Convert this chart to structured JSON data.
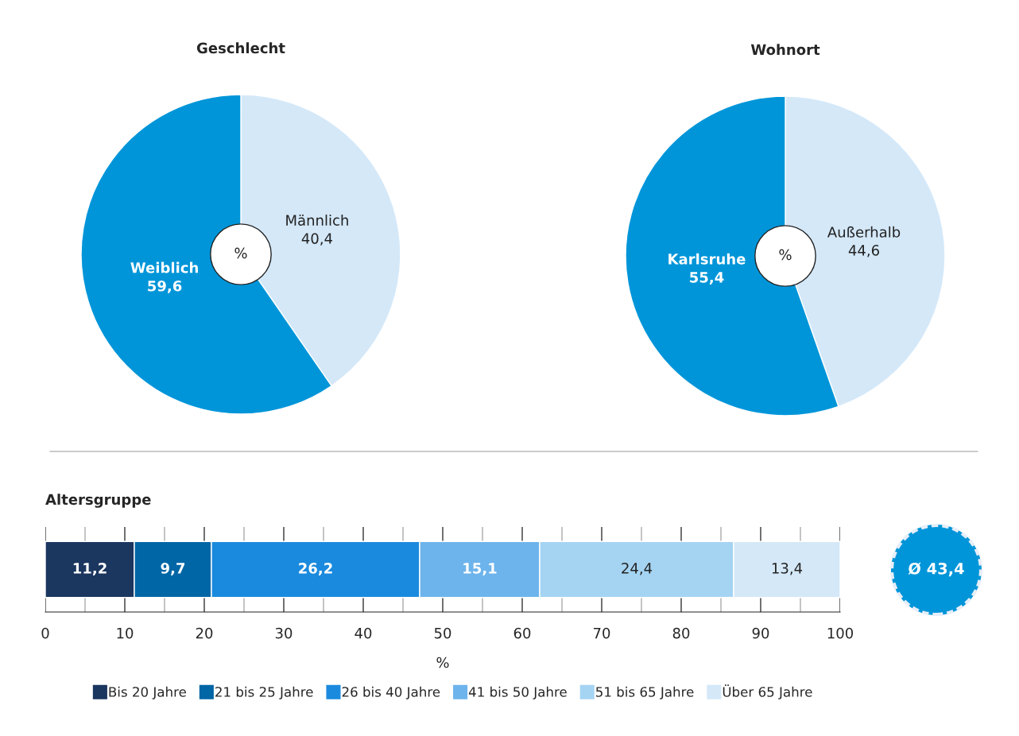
{
  "chart_data": [
    {
      "type": "pie",
      "title": "Geschlecht",
      "categories": [
        "Männlich",
        "Weiblich"
      ],
      "values": [
        40.4,
        59.6
      ],
      "value_labels": [
        "40,4",
        "59,6"
      ],
      "colors": [
        "#d4e8f8",
        "#0095d9"
      ],
      "annotations": [
        "%"
      ]
    },
    {
      "type": "pie",
      "title": "Wohnort",
      "categories": [
        "Außerhalb",
        "Karlsruhe"
      ],
      "values": [
        44.6,
        55.4
      ],
      "value_labels": [
        "44,6",
        "55,4"
      ],
      "colors": [
        "#d4e8f8",
        "#0095d9"
      ],
      "annotations": [
        "%"
      ]
    },
    {
      "type": "bar",
      "title": "Altersgruppe",
      "orientation": "horizontal",
      "stacked": true,
      "categories": [
        null
      ],
      "xlabel": "%",
      "xlim": [
        0,
        100
      ],
      "xticks": [
        0,
        {
          "value": 5,
          "label": null
        },
        10,
        {
          "value": 15,
          "label": null
        },
        20,
        {
          "value": 25,
          "label": null
        },
        30,
        {
          "value": 35,
          "label": null
        },
        40,
        {
          "value": 45,
          "label": null
        },
        50,
        {
          "value": 55,
          "label": null
        },
        60,
        {
          "value": 65,
          "label": null
        },
        70,
        {
          "value": 75,
          "label": null
        },
        80,
        {
          "value": 85,
          "label": null
        },
        90,
        {
          "value": 95,
          "label": null
        },
        100
      ],
      "grid": "x",
      "legend": "bottom",
      "series": [
        {
          "name": "Bis 20 Jahre",
          "color": "#1b365f",
          "values": [
            11.2
          ],
          "value_labels": [
            "11,2"
          ]
        },
        {
          "name": "21 bis 25 Jahre",
          "color": "#0066a6",
          "values": [
            9.7
          ],
          "value_labels": [
            "9,7"
          ]
        },
        {
          "name": "26 bis 40 Jahre",
          "color": "#1a8ade",
          "values": [
            26.2
          ],
          "value_labels": [
            "26,2"
          ]
        },
        {
          "name": "41 bis 50 Jahre",
          "color": "#6db4ec",
          "values": [
            15.1
          ],
          "value_labels": [
            "15,1"
          ]
        },
        {
          "name": "51 bis 65 Jahre",
          "color": "#a5d4f3",
          "values": [
            24.4
          ],
          "value_labels": [
            "24,4"
          ]
        },
        {
          "name": "Über 65 Jahre",
          "color": "#d4e8f8",
          "values": [
            13.4
          ],
          "value_labels": [
            "13,4"
          ]
        }
      ],
      "annotations": [
        "Ø 43,4"
      ]
    }
  ]
}
